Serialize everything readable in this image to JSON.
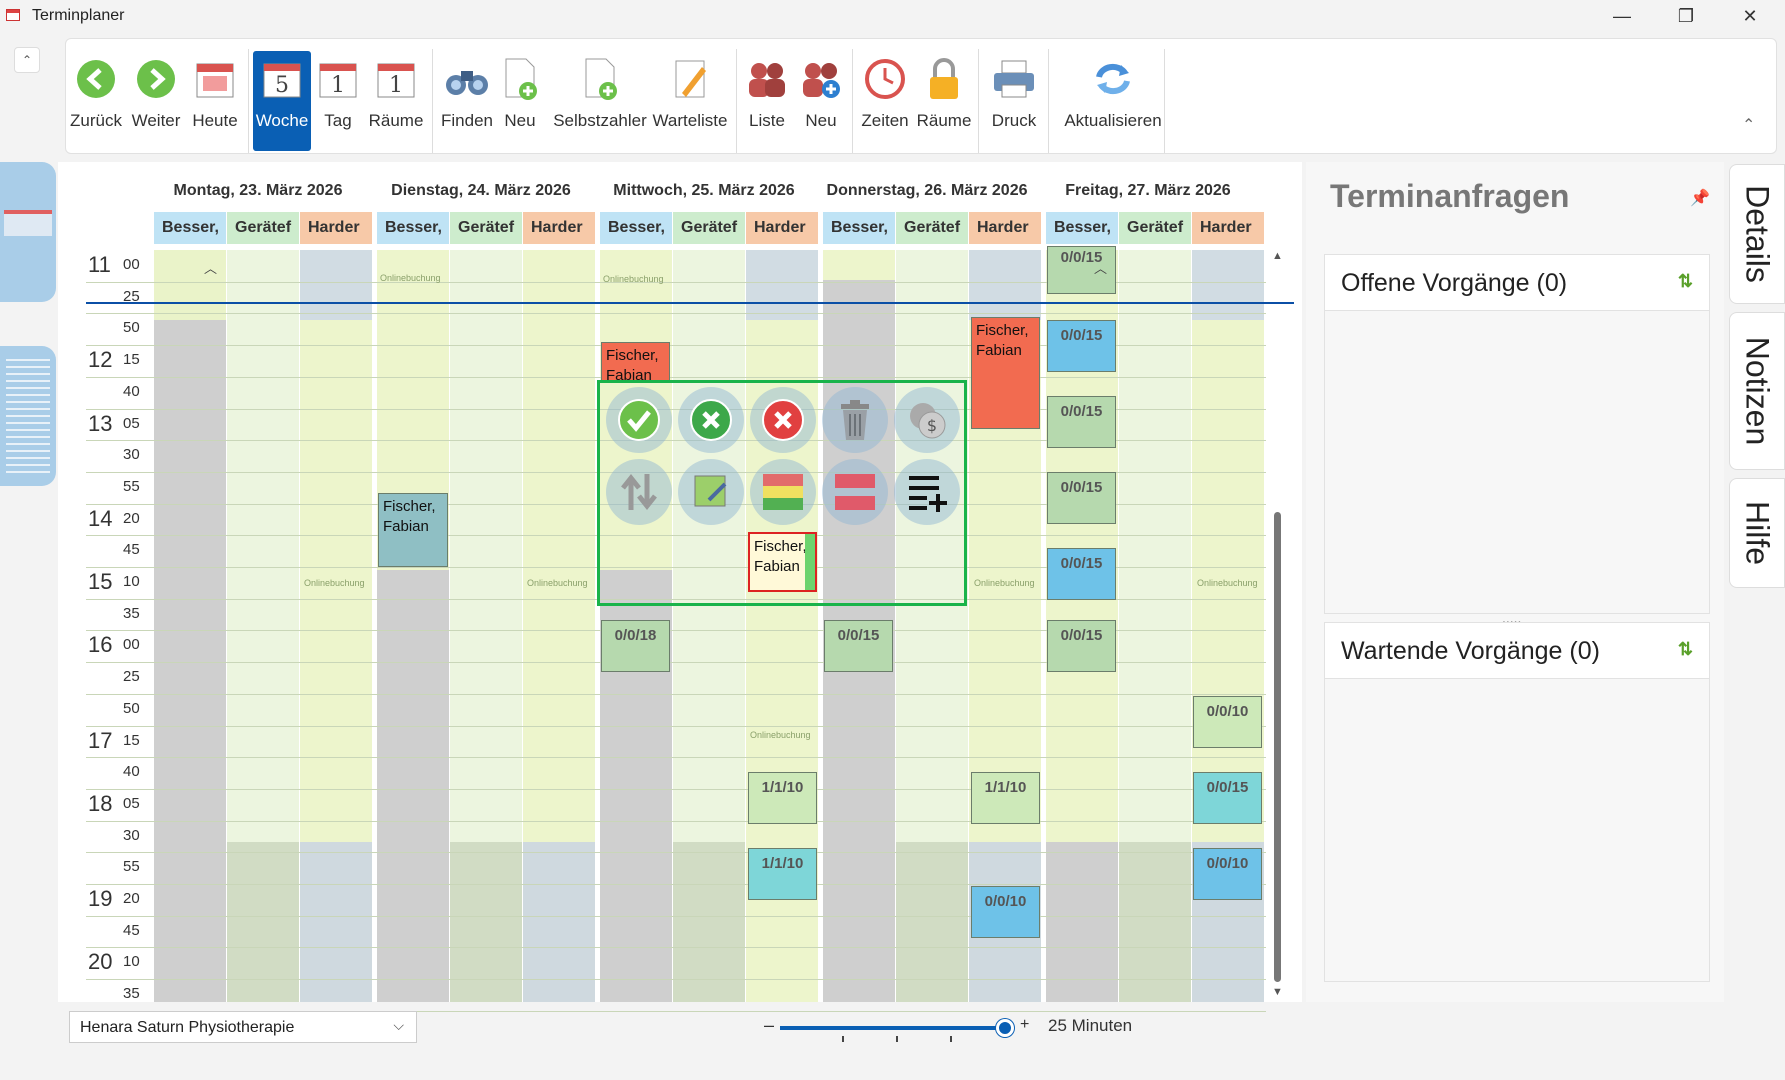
{
  "window": {
    "title": "Terminplaner"
  },
  "toolbar": {
    "buttons": [
      {
        "label": "Zurück",
        "icon": "arrow-left-icon"
      },
      {
        "label": "Weiter",
        "icon": "arrow-right-icon"
      },
      {
        "label": "Heute",
        "icon": "calendar-today-icon"
      },
      {
        "label": "Woche",
        "icon": "calendar-week-icon",
        "num": "5",
        "active": true
      },
      {
        "label": "Tag",
        "icon": "calendar-day-icon",
        "num": "1"
      },
      {
        "label": "Räume",
        "icon": "calendar-rooms-icon",
        "num": "1"
      },
      {
        "label": "Finden",
        "icon": "binoculars-icon"
      },
      {
        "label": "Neu",
        "icon": "new-document-icon"
      },
      {
        "label": "Selbstzahler",
        "icon": "self-payer-icon"
      },
      {
        "label": "Warteliste",
        "icon": "waitlist-icon"
      },
      {
        "label": "Liste",
        "icon": "people-list-icon"
      },
      {
        "label": "Neu",
        "icon": "new-person-icon"
      },
      {
        "label": "Zeiten",
        "icon": "clock-icon"
      },
      {
        "label": "Räume",
        "icon": "lock-icon"
      },
      {
        "label": "Druck",
        "icon": "printer-icon"
      },
      {
        "label": "Aktualisieren",
        "icon": "refresh-icon"
      }
    ]
  },
  "calendar": {
    "days": [
      {
        "label": "Montag, 23. März 2026"
      },
      {
        "label": "Dienstag, 24. März 2026"
      },
      {
        "label": "Mittwoch, 25. März 2026"
      },
      {
        "label": "Donnerstag, 26. März 2026"
      },
      {
        "label": "Freitag, 27. März 2026"
      }
    ],
    "resources": [
      "Besser,",
      "Gerätef",
      "Harder"
    ],
    "time_rows": [
      {
        "h": "11",
        "m": "00"
      },
      {
        "h": "",
        "m": "25"
      },
      {
        "h": "",
        "m": "50"
      },
      {
        "h": "12",
        "m": "15"
      },
      {
        "h": "",
        "m": "40"
      },
      {
        "h": "13",
        "m": "05"
      },
      {
        "h": "",
        "m": "30"
      },
      {
        "h": "",
        "m": "55"
      },
      {
        "h": "14",
        "m": "20"
      },
      {
        "h": "",
        "m": "45"
      },
      {
        "h": "15",
        "m": "10"
      },
      {
        "h": "",
        "m": "35"
      },
      {
        "h": "16",
        "m": "00"
      },
      {
        "h": "",
        "m": "25"
      },
      {
        "h": "",
        "m": "50"
      },
      {
        "h": "17",
        "m": "15"
      },
      {
        "h": "",
        "m": "40"
      },
      {
        "h": "18",
        "m": "05"
      },
      {
        "h": "",
        "m": "30"
      },
      {
        "h": "",
        "m": "55"
      },
      {
        "h": "19",
        "m": "20"
      },
      {
        "h": "",
        "m": "45"
      },
      {
        "h": "20",
        "m": "10"
      },
      {
        "h": "",
        "m": "35"
      }
    ],
    "online_label": "Onlinebuchung",
    "appointments": {
      "fischer1": "Fischer, Fabian",
      "fischer2": "Fischer, Fabian",
      "fischer3": "Fischer, Fabian",
      "fischer4": "Fischer, Fabian",
      "wed_16": "0/0/18",
      "wed_18": "1/1/10",
      "wed_19": "1/1/10",
      "thu_16": "0/0/15",
      "thu_18": "1/1/10",
      "thu_19": "0/0/10",
      "fri_11": "0/0/15",
      "fri_12": "0/0/15",
      "fri_13": "0/0/15",
      "fri_14": "0/0/15",
      "fri_15": "0/0/15",
      "fri_16": "0/0/15",
      "fri_h17": "0/0/10",
      "fri_h18": "0/0/15",
      "fri_h19": "0/0/10"
    }
  },
  "right_panel": {
    "title": "Terminanfragen",
    "open": "Offene Vorgänge (0)",
    "waiting": "Wartende Vorgänge (0)",
    "splitter": "....."
  },
  "side_tabs": [
    "Details",
    "Notizen",
    "Hilfe"
  ],
  "footer": {
    "location": "Henara Saturn Physiotherapie",
    "zoom_minus": "–",
    "zoom_plus": "+",
    "zoom_label": "25 Minuten"
  },
  "colors": {
    "accent": "#0a5fb4",
    "besser": "#bfe3f5",
    "geraete": "#cdeccd",
    "harder": "#f7c9a8",
    "popup_border": "#19b34a"
  }
}
